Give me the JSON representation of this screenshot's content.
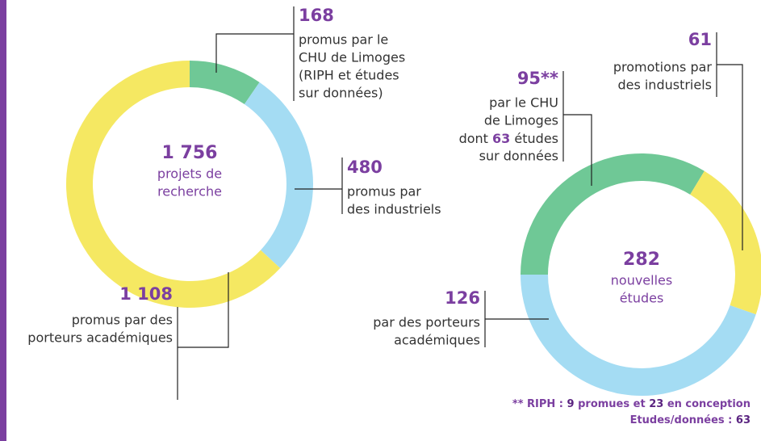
{
  "chart_data": [
    {
      "type": "donut",
      "total": {
        "value": 1756,
        "label": "1 756"
      },
      "center_text": [
        "projets de",
        "recherche"
      ],
      "categories": [
        [
          "promus par le",
          "CHU de Limoges",
          "(RIPH et études",
          "sur données)"
        ],
        [
          "promus par",
          "des industriels"
        ],
        [
          "promus par des",
          "porteurs académiques"
        ]
      ],
      "values": [
        168,
        480,
        1108
      ],
      "value_labels": [
        "168",
        "480",
        "1 108"
      ],
      "colors": [
        "#6fc896",
        "#a4dcf3",
        "#f5e862"
      ],
      "start_angle": 0
    },
    {
      "type": "donut",
      "total": 282,
      "center_text": [
        "nouvelles",
        "études"
      ],
      "categories": [
        [
          "par le CHU",
          "de Limoges",
          [
            "dont ",
            "63",
            " études"
          ],
          "sur données"
        ],
        [
          "promotions par",
          "des industriels"
        ],
        [
          "par des porteurs",
          "académiques"
        ]
      ],
      "values": [
        95,
        61,
        126
      ],
      "value_labels": [
        "95**",
        "61",
        "126"
      ],
      "colors": [
        "#6fc896",
        "#f5e862",
        "#a4dcf3"
      ],
      "start_angle": 270
    }
  ],
  "footnote": [
    [
      "** RIPH : ",
      "9",
      " promues et ",
      "23",
      " en conception"
    ],
    [
      "Etudes/données : ",
      "63"
    ]
  ]
}
